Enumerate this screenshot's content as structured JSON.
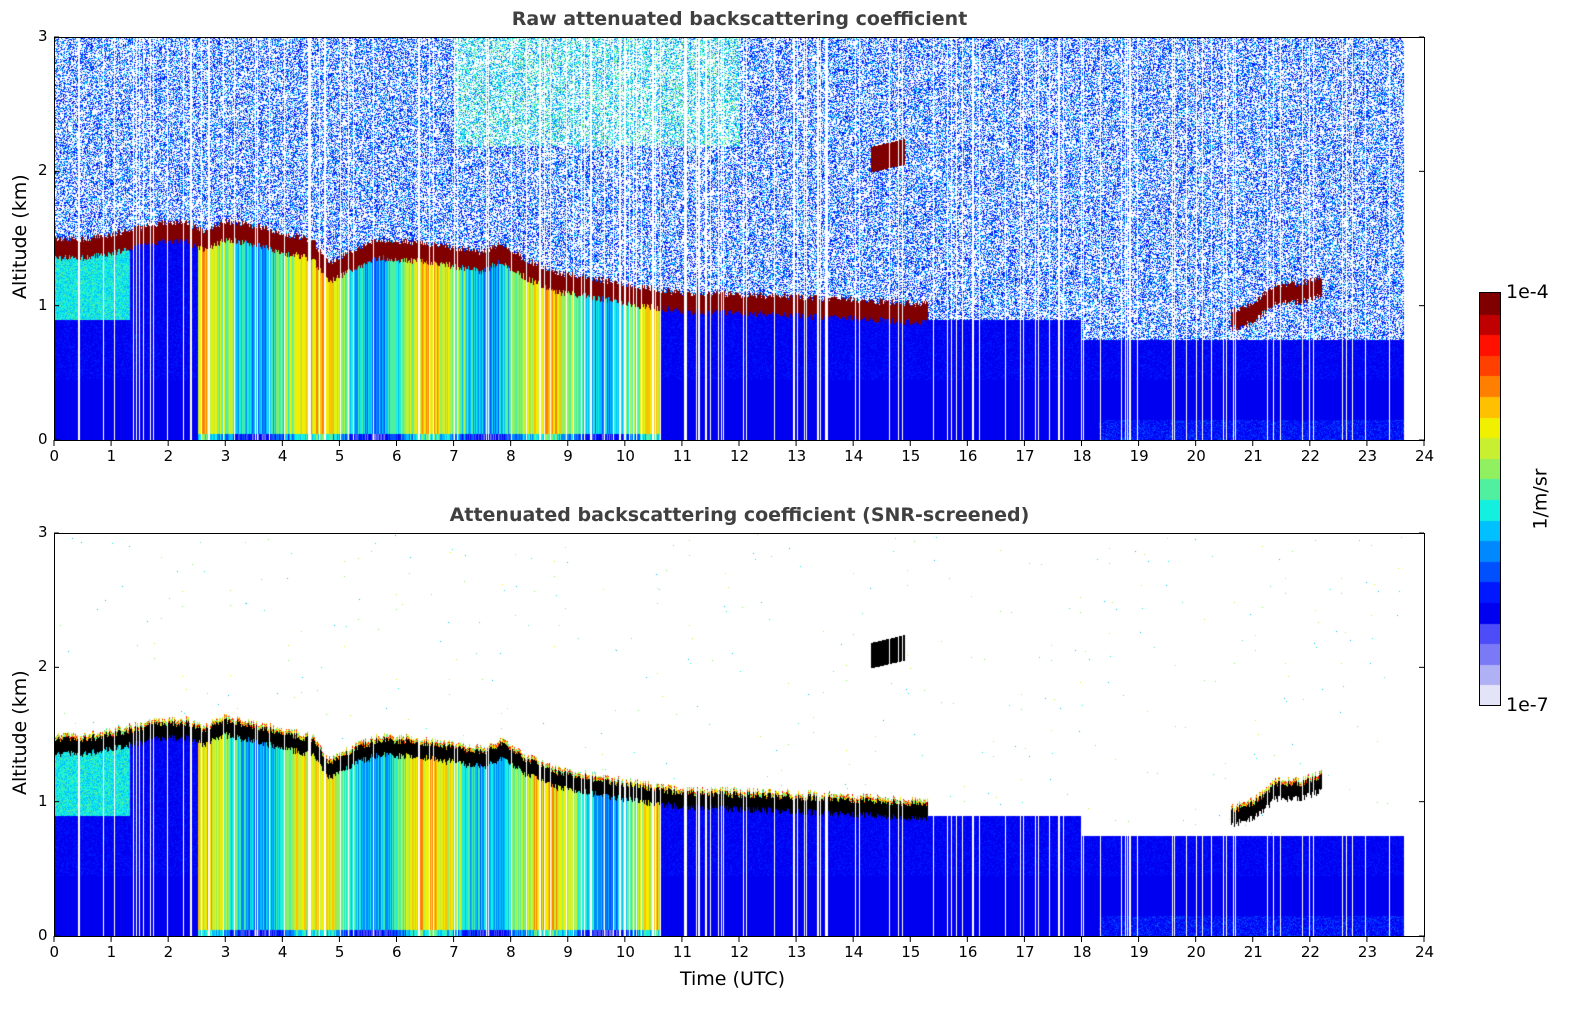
{
  "chart_data": [
    {
      "type": "heatmap",
      "title": "Raw attenuated backscattering coefficient",
      "xlabel": "",
      "ylabel": "Altitude (km)",
      "xlim": [
        0,
        24
      ],
      "ylim": [
        0,
        3
      ],
      "xticks": [
        "0",
        "1",
        "2",
        "3",
        "4",
        "5",
        "6",
        "7",
        "8",
        "9",
        "10",
        "11",
        "12",
        "13",
        "14",
        "15",
        "16",
        "17",
        "18",
        "19",
        "20",
        "21",
        "22",
        "23",
        "24"
      ],
      "yticks": [
        "0",
        "1",
        "2",
        "3"
      ],
      "screened": false
    },
    {
      "type": "heatmap",
      "title": "Attenuated backscattering coefficient (SNR-screened)",
      "xlabel": "Time (UTC)",
      "ylabel": "Altitude (km)",
      "xlim": [
        0,
        24
      ],
      "ylim": [
        0,
        3
      ],
      "xticks": [
        "0",
        "1",
        "2",
        "3",
        "4",
        "5",
        "6",
        "7",
        "8",
        "9",
        "10",
        "11",
        "12",
        "13",
        "14",
        "15",
        "16",
        "17",
        "18",
        "19",
        "20",
        "21",
        "22",
        "23",
        "24"
      ],
      "yticks": [
        "0",
        "1",
        "2",
        "3"
      ],
      "screened": true
    }
  ],
  "colorbar": {
    "label": "1/m/sr",
    "max_label": "1e-4",
    "min_label": "1e-7",
    "log_range": [
      -7,
      -4
    ],
    "colormap": [
      "#e4e4f8",
      "#b0b0f4",
      "#7a7af6",
      "#4c4cf8",
      "#0000f0",
      "#0018ff",
      "#0050ff",
      "#0088ff",
      "#00c0ff",
      "#14f0e0",
      "#50f0a0",
      "#90f060",
      "#c8f030",
      "#f0f000",
      "#ffc000",
      "#ff8000",
      "#ff4000",
      "#ff1000",
      "#c00000",
      "#800000"
    ]
  },
  "data_end_hour": 23.65,
  "cloud_base": [
    {
      "t": 0.0,
      "z": 1.38
    },
    {
      "t": 0.5,
      "z": 1.38
    },
    {
      "t": 1.0,
      "z": 1.42
    },
    {
      "t": 1.4,
      "z": 1.46
    },
    {
      "t": 1.8,
      "z": 1.5
    },
    {
      "t": 2.3,
      "z": 1.5
    },
    {
      "t": 2.6,
      "z": 1.45
    },
    {
      "t": 3.0,
      "z": 1.52
    },
    {
      "t": 3.5,
      "z": 1.48
    },
    {
      "t": 4.0,
      "z": 1.42
    },
    {
      "t": 4.5,
      "z": 1.38
    },
    {
      "t": 4.8,
      "z": 1.2
    },
    {
      "t": 5.2,
      "z": 1.3
    },
    {
      "t": 5.7,
      "z": 1.38
    },
    {
      "t": 6.3,
      "z": 1.36
    },
    {
      "t": 7.0,
      "z": 1.32
    },
    {
      "t": 7.5,
      "z": 1.28
    },
    {
      "t": 7.8,
      "z": 1.35
    },
    {
      "t": 8.3,
      "z": 1.22
    },
    {
      "t": 8.8,
      "z": 1.13
    },
    {
      "t": 9.5,
      "z": 1.08
    },
    {
      "t": 10.2,
      "z": 1.03
    },
    {
      "t": 11.0,
      "z": 0.98
    },
    {
      "t": 12.0,
      "z": 0.97
    },
    {
      "t": 13.0,
      "z": 0.95
    },
    {
      "t": 14.0,
      "z": 0.93
    },
    {
      "t": 15.2,
      "z": 0.9
    }
  ],
  "cloud_segments": [
    {
      "t0": 0.0,
      "t1": 15.3
    },
    {
      "t0": 20.6,
      "t1": 22.2
    }
  ],
  "late_cloud": [
    {
      "t": 20.6,
      "z": 0.85
    },
    {
      "t": 21.0,
      "z": 0.9
    },
    {
      "t": 21.4,
      "z": 1.05
    },
    {
      "t": 21.8,
      "z": 1.05
    },
    {
      "t": 22.2,
      "z": 1.1
    }
  ],
  "elevated_cloud": {
    "t0": 14.3,
    "t1": 14.9,
    "z0": 2.0,
    "z1": 2.25
  }
}
